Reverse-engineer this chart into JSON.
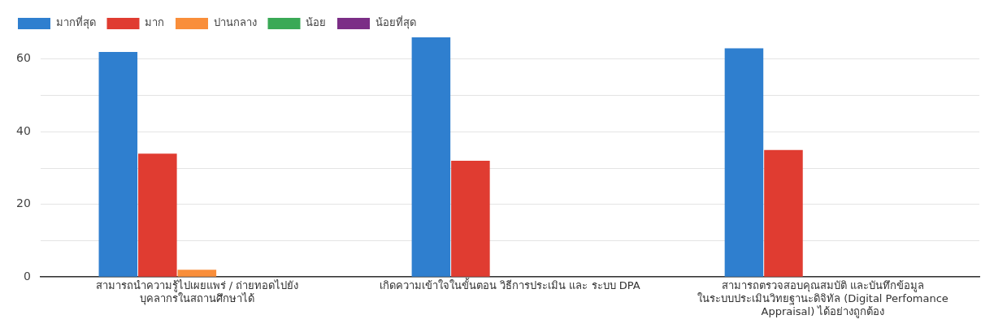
{
  "chart_data": {
    "type": "bar",
    "categories": [
      "สามารถนำความรู้ไปเผยแพร่ / ถ่ายทอดไปยัง บุคลากรในสถานศึกษาได้",
      "เกิดความเข้าใจในขั้นตอน วิธีการประเมิน และ ระบบ DPA",
      "สามารถตรวจสอบคุณสมบัติ และบันทึกข้อมูล ในระบบประเมินวิทยฐานะดิจิทัล (Digital Perfomance Appraisal) ได้อย่างถูกต้อง"
    ],
    "series": [
      {
        "name": "มากที่สุด",
        "color": "#2f7fcf",
        "values": [
          62,
          66,
          63
        ]
      },
      {
        "name": "มาก",
        "color": "#e03c31",
        "values": [
          34,
          32,
          35
        ]
      },
      {
        "name": "ปานกลาง",
        "color": "#f98e3a",
        "values": [
          2,
          0,
          0
        ]
      },
      {
        "name": "น้อย",
        "color": "#3aa956",
        "values": [
          0,
          0,
          0
        ]
      },
      {
        "name": "น้อยที่สุด",
        "color": "#7b2e86",
        "values": [
          0,
          0,
          0
        ]
      }
    ],
    "ylim": [
      0,
      66
    ],
    "yticks": [
      0,
      {
        "value": 10,
        "label": null
      },
      20,
      {
        "value": 30,
        "label": null
      },
      40,
      {
        "value": 50,
        "label": null
      },
      60
    ],
    "grid": "y",
    "legend": "top left"
  }
}
